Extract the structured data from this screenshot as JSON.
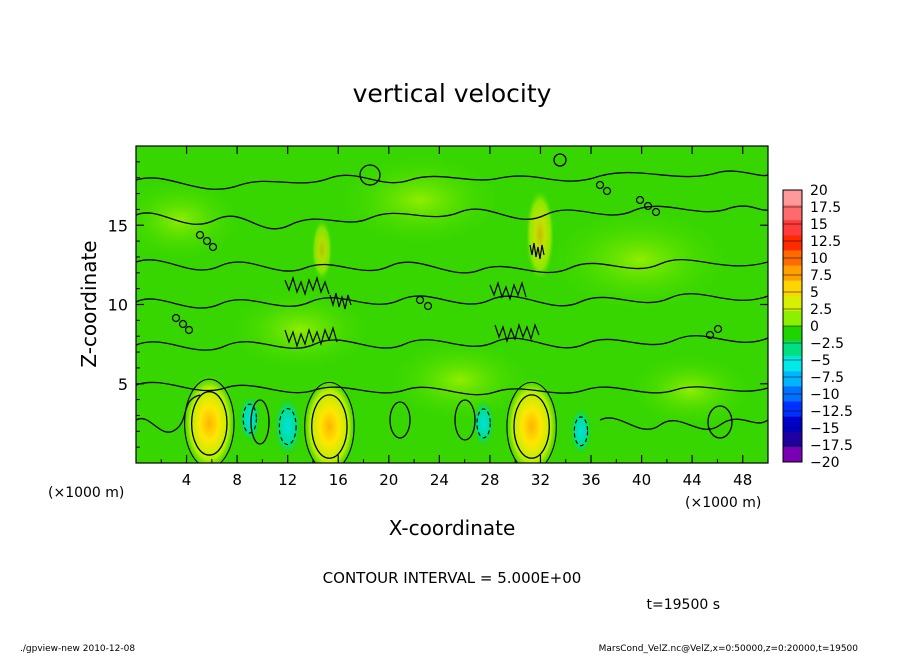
{
  "chart_data": {
    "type": "heatmap",
    "title": "vertical velocity",
    "xlabel": "X-coordinate",
    "ylabel": "Z-coordinate",
    "x_unit": "(×1000 m)",
    "x_unit_right": "(×1000 m)",
    "xlim": [
      0,
      50
    ],
    "ylim": [
      0,
      20
    ],
    "x_ticks": [
      "4",
      "8",
      "12",
      "16",
      "20",
      "24",
      "28",
      "32",
      "36",
      "40",
      "44",
      "48"
    ],
    "y_ticks": [
      "5",
      "10",
      "15"
    ],
    "colorbar": {
      "labels": [
        "20",
        "17.5",
        "15",
        "12.5",
        "10",
        "7.5",
        "5",
        "2.5",
        "0",
        "−2.5",
        "−5",
        "−7.5",
        "−10",
        "−12.5",
        "−15",
        "−17.5",
        "−20"
      ],
      "colors": [
        "#ff9a9a",
        "#ff6a6a",
        "#ff3b3b",
        "#ff2a00",
        "#ff6a00",
        "#ffa000",
        "#ffd400",
        "#d8f000",
        "#8cf000",
        "#20d400",
        "#00e080",
        "#00e8e8",
        "#00b4ff",
        "#0070ff",
        "#0030ff",
        "#0000c8",
        "#2000a0",
        "#7a00b4"
      ]
    },
    "features": [
      {
        "kind": "updraft",
        "x": 5.8,
        "z": 2.5,
        "w": 7.5
      },
      {
        "kind": "updraft",
        "x": 15.3,
        "z": 2.3,
        "w": 8
      },
      {
        "kind": "updraft",
        "x": 31.3,
        "z": 2.3,
        "w": 8
      },
      {
        "kind": "downdraft",
        "x": 12,
        "z": 2.3,
        "w": -5
      },
      {
        "kind": "downdraft",
        "x": 9,
        "z": 2.8,
        "w": -2.5
      },
      {
        "kind": "downdraft",
        "x": 35.2,
        "z": 2.0,
        "w": -2.5
      },
      {
        "kind": "downdraft",
        "x": 27.5,
        "z": 2.5,
        "w": -2.5
      }
    ]
  },
  "contour_interval": "CONTOUR INTERVAL = 5.000E+00",
  "time_label": "t=19500 s",
  "footer_left": "./gpview-new  2010-12-08",
  "footer_right": "MarsCond_VelZ.nc@VelZ,x=0:50000,z=0:20000,t=19500",
  "colors": {
    "field_bg": "#30d400",
    "plot_frame": "#000000"
  }
}
